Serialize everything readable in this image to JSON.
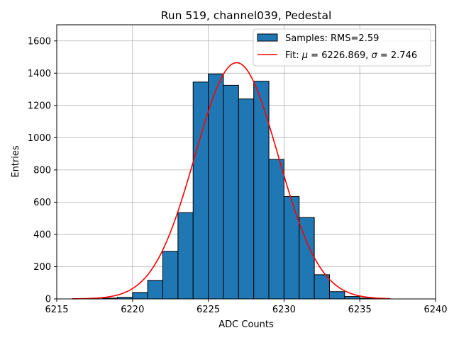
{
  "chart_data": {
    "type": "bar",
    "title": "Run 519, channel039, Pedestal",
    "xlabel": "ADC Counts",
    "ylabel": "Entries",
    "xlim": [
      6215,
      6240
    ],
    "ylim": [
      0,
      1700
    ],
    "xticks": [
      6215,
      6220,
      6225,
      6230,
      6235,
      6240
    ],
    "yticks": [
      0,
      200,
      400,
      600,
      800,
      1000,
      1200,
      1400,
      1600
    ],
    "grid": true,
    "legend_position": "top-right",
    "histogram": {
      "label": "Samples: RMS=2.59",
      "color": "#1f77b4",
      "bin_width": 1,
      "bin_starts": [
        6218,
        6219,
        6220,
        6221,
        6222,
        6223,
        6224,
        6225,
        6226,
        6227,
        6228,
        6229,
        6230,
        6231,
        6232,
        6233,
        6234,
        6235,
        6236
      ],
      "values": [
        5,
        10,
        40,
        115,
        295,
        535,
        1345,
        1395,
        1325,
        1240,
        1350,
        865,
        635,
        505,
        150,
        45,
        15,
        5,
        2
      ]
    },
    "fit": {
      "label_prefix": "Fit: ",
      "label_mu_symbol": "μ",
      "label_mu_text": " = 6226.869, ",
      "label_sigma_symbol": "σ",
      "label_sigma_text": " = 2.746",
      "color": "#ff0000",
      "mu": 6226.869,
      "sigma": 2.746,
      "amplitude": 1465,
      "x_range": [
        6216,
        6237
      ]
    }
  }
}
